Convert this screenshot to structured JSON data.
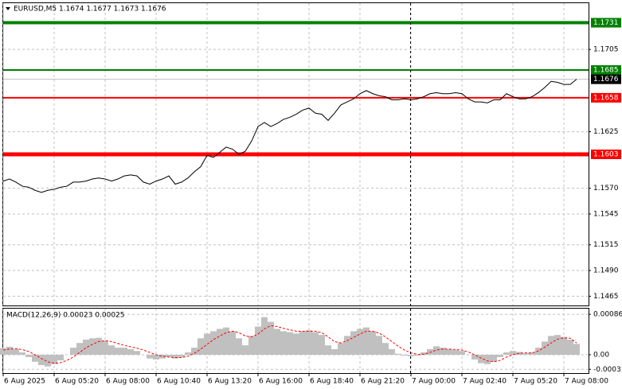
{
  "chart_data": [
    {
      "type": "line",
      "title": "EURUSD,M5  1.1674 1.1677 1.1673 1.1676",
      "color": "#000000",
      "categories": [
        "6 Aug 2025",
        null,
        null,
        null,
        null,
        null,
        null,
        null,
        "6 Aug 05:20",
        null,
        null,
        null,
        null,
        null,
        null,
        null,
        "6 Aug 08:00",
        null,
        null,
        null,
        null,
        null,
        null,
        null,
        "6 Aug 10:40",
        null,
        null,
        null,
        null,
        null,
        null,
        null,
        "6 Aug 13:20",
        null,
        null,
        null,
        null,
        null,
        null,
        null,
        "6 Aug 16:00",
        null,
        null,
        null,
        null,
        null,
        null,
        null,
        "6 Aug 18:40",
        null,
        null,
        null,
        null,
        null,
        null,
        null,
        "6 Aug 21:20",
        null,
        null,
        null,
        null,
        null,
        null,
        null,
        "7 Aug 00:00",
        null,
        null,
        null,
        null,
        null,
        null,
        null,
        "7 Aug 02:40",
        null,
        null,
        null,
        null,
        null,
        null,
        null,
        "7 Aug 05:20",
        null,
        null,
        null,
        null,
        null,
        null,
        null,
        "7 Aug 08:00",
        null,
        null
      ],
      "values": [
        1.1577,
        1.1579,
        1.1576,
        1.1572,
        1.1571,
        1.1568,
        1.1566,
        1.1568,
        1.1569,
        1.1571,
        1.1572,
        1.1576,
        1.1576,
        1.1577,
        1.1579,
        1.158,
        1.1579,
        1.1577,
        1.1579,
        1.1582,
        1.1583,
        1.1582,
        1.1576,
        1.1574,
        1.1577,
        1.1579,
        1.1582,
        1.1574,
        1.1576,
        1.158,
        1.1586,
        1.1591,
        1.1602,
        1.16,
        1.1605,
        1.161,
        1.1608,
        1.1603,
        1.1606,
        1.1616,
        1.163,
        1.1634,
        1.163,
        1.1633,
        1.1637,
        1.1639,
        1.1642,
        1.1646,
        1.1648,
        1.1643,
        1.1642,
        1.1636,
        1.1643,
        1.1651,
        1.1654,
        1.1657,
        1.1662,
        1.1665,
        1.1662,
        1.166,
        1.1659,
        1.1656,
        1.1656,
        1.1657,
        1.1656,
        1.1657,
        1.1659,
        1.1662,
        1.1663,
        1.1662,
        1.1662,
        1.1663,
        1.1662,
        1.1657,
        1.1654,
        1.1654,
        1.1653,
        1.1656,
        1.1656,
        1.1662,
        1.1659,
        1.1657,
        1.1657,
        1.1659,
        1.1663,
        1.1668,
        1.1674,
        1.1673,
        1.1671,
        1.1671,
        1.1676
      ],
      "ylim": [
        1.1456,
        1.175
      ],
      "yticks": [
        1.1705,
        1.1625,
        {
          "value": 1.157,
          "label": "1.1570"
        },
        1.1545,
        1.1515,
        {
          "value": 1.149,
          "label": "1.1490"
        },
        1.1465
      ],
      "grid": true,
      "levels": [
        {
          "value": 1.1731,
          "color": "#008000",
          "width": 4
        },
        {
          "value": 1.1685,
          "color": "#008000",
          "width": 2
        },
        {
          "value": 1.1658,
          "color": "#ff0000",
          "width": 2
        },
        {
          "value": 1.1603,
          "color": "#ff0000",
          "width": 5
        }
      ],
      "last_price": {
        "value": 1.1676,
        "color": "#000000"
      }
    },
    {
      "type": "macd",
      "title": "MACD(12,26,9) 0.00023 0.00025",
      "ylim": [
        -0.00039,
        0.00098
      ],
      "yticks": [
        0.00086,
        {
          "value": 0,
          "label": "0.00"
        },
        -0.00031
      ],
      "series": [
        {
          "kind": "bar",
          "color": "#c0c0c0",
          "values": [
            0.00014,
            0.00017,
            0.00012,
            5e-05,
            -5e-05,
            -0.00015,
            -0.00022,
            -0.00025,
            -0.0002,
            -0.00012,
            0,
            0.00015,
            0.00025,
            0.00032,
            0.00035,
            0.00036,
            0.0003,
            0.0002,
            0.00015,
            0.00015,
            0.00012,
            8e-05,
            0,
            -8e-05,
            -0.0001,
            -8e-05,
            -5e-05,
            -8e-05,
            -5e-05,
            5e-05,
            0.00015,
            0.00035,
            0.00045,
            0.0005,
            0.00055,
            0.00058,
            0.0005,
            0.00035,
            0.0002,
            0.0004,
            0.0006,
            0.0008,
            0.0007,
            0.00055,
            0.0005,
            0.00048,
            0.00045,
            0.0005,
            0.00052,
            0.00048,
            0.00042,
            0.0002,
            0.00012,
            0.00025,
            0.0004,
            0.0005,
            0.00055,
            0.00058,
            0.0005,
            0.0004,
            0.00025,
            0.00012,
            2e-05,
            -2e-05,
            -3e-05,
            -2e-05,
            5e-05,
            0.00012,
            0.00018,
            0.00015,
            0.00012,
            0.0001,
            8e-05,
            0,
            -0.0001,
            -0.00018,
            -0.0002,
            -0.00015,
            -5e-05,
            5e-05,
            8e-05,
            6e-05,
            3e-05,
            5e-05,
            0.00015,
            0.00028,
            0.0004,
            0.00042,
            0.00038,
            0.00032,
            0.00023
          ]
        },
        {
          "kind": "line",
          "color": "#ff0000",
          "dash": true,
          "values": [
            0.0001,
            0.00012,
            0.00013,
            0.00011,
            7e-05,
            0,
            -8e-05,
            -0.00015,
            -0.00018,
            -0.00017,
            -0.00012,
            -5e-05,
            5e-05,
            0.00015,
            0.00022,
            0.00028,
            0.0003,
            0.00028,
            0.00024,
            0.0002,
            0.00017,
            0.00014,
            0.0001,
            5e-05,
            0,
            -3e-05,
            -5e-05,
            -6e-05,
            -6e-05,
            -3e-05,
            3e-05,
            0.00012,
            0.00022,
            0.00032,
            0.0004,
            0.00047,
            0.0005,
            0.00047,
            0.0004,
            0.00038,
            0.00044,
            0.00055,
            0.00062,
            0.0006,
            0.00056,
            0.00053,
            0.0005,
            0.0005,
            0.0005,
            0.0005,
            0.00047,
            0.00038,
            0.00028,
            0.00025,
            0.0003,
            0.00037,
            0.00044,
            0.0005,
            0.0005,
            0.00046,
            0.00038,
            0.00028,
            0.00018,
            0.0001,
            4e-05,
            1e-05,
            1e-05,
            5e-05,
            0.0001,
            0.00012,
            0.00012,
            0.00011,
            0.0001,
            6e-05,
            0,
            -7e-05,
            -0.00013,
            -0.00015,
            -0.00012,
            -5e-05,
            0,
            3e-05,
            4e-05,
            4e-05,
            8e-05,
            0.00016,
            0.00025,
            0.00033,
            0.00036,
            0.00035,
            0.00025
          ]
        }
      ]
    }
  ]
}
